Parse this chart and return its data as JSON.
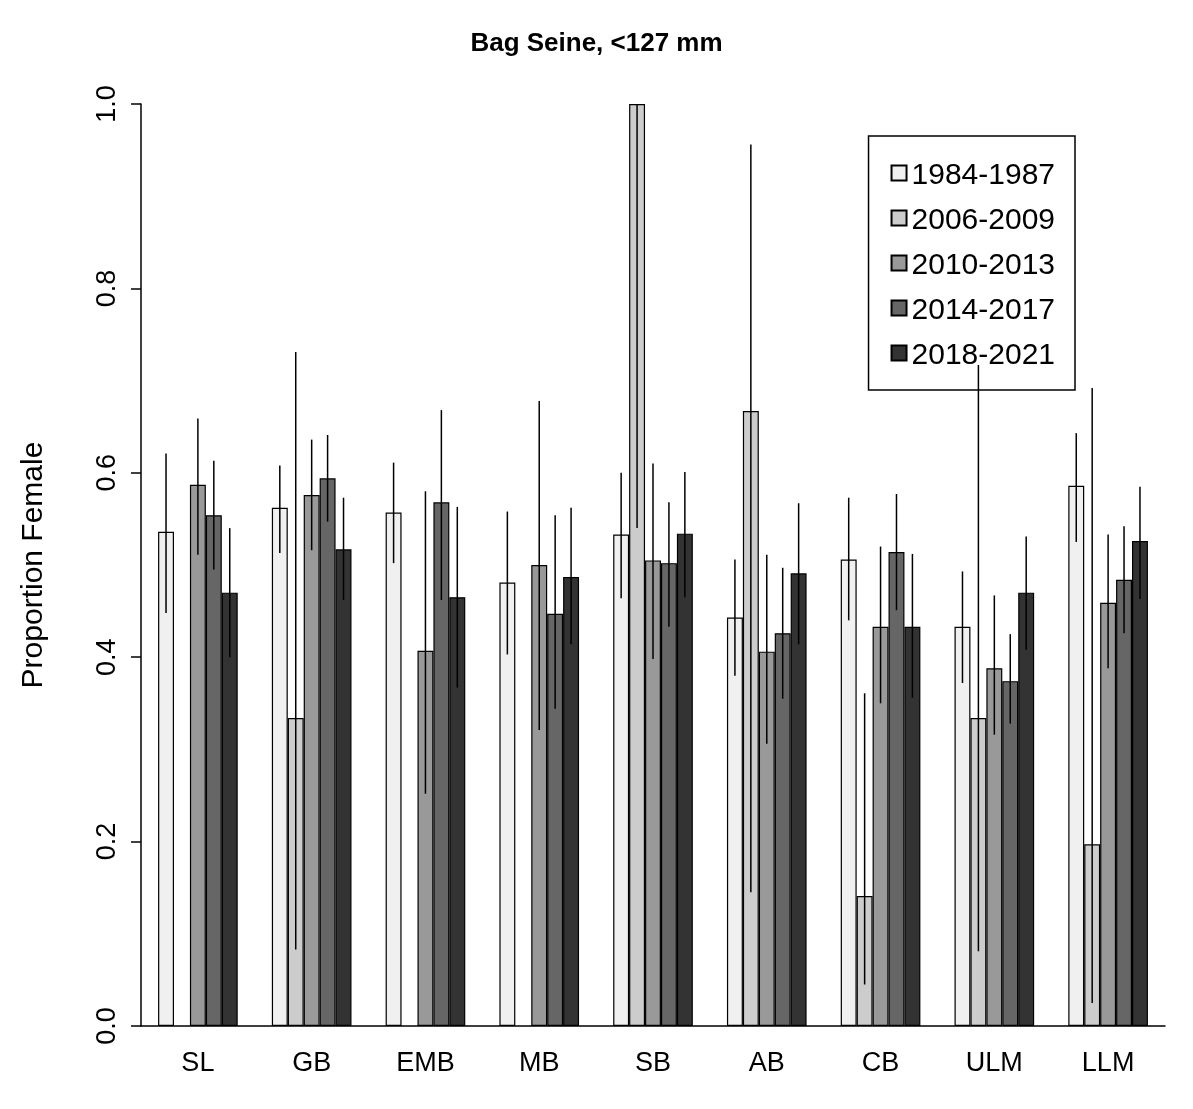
{
  "chart_data": {
    "type": "bar",
    "title": "Bag Seine, <127 mm",
    "ylabel": "Proportion Female",
    "categories": [
      "SL",
      "GB",
      "EMB",
      "MB",
      "SB",
      "AB",
      "CB",
      "ULM",
      "LLM"
    ],
    "series": [
      {
        "name": "1984-1987",
        "color": "#f0f0f0",
        "values": [
          0.536,
          0.562,
          0.557,
          0.481,
          0.533,
          0.443,
          0.506,
          0.433,
          0.586
        ],
        "errors": [
          [
            0.448,
            0.621
          ],
          [
            0.513,
            0.608
          ],
          [
            0.502,
            0.611
          ],
          [
            0.403,
            0.558
          ],
          [
            0.464,
            0.6
          ],
          [
            0.38,
            0.506
          ],
          [
            0.44,
            0.573
          ],
          [
            0.372,
            0.493
          ],
          [
            0.525,
            0.643
          ]
        ]
      },
      {
        "name": "2006-2009",
        "color": "#cccccc",
        "values": [
          null,
          0.334,
          null,
          null,
          1.0,
          0.667,
          0.141,
          0.334,
          0.197
        ],
        "errors": [
          null,
          [
            0.083,
            0.731
          ],
          null,
          null,
          [
            0.54,
            1.0
          ],
          [
            0.145,
            0.956
          ],
          [
            0.045,
            0.361
          ],
          [
            0.081,
            0.717
          ],
          [
            0.025,
            0.692
          ]
        ]
      },
      {
        "name": "2010-2013",
        "color": "#999999",
        "values": [
          0.587,
          0.576,
          0.407,
          0.5,
          0.505,
          0.406,
          0.433,
          0.388,
          0.459
        ],
        "errors": [
          [
            0.511,
            0.659
          ],
          [
            0.516,
            0.636
          ],
          [
            0.252,
            0.58
          ],
          [
            0.321,
            0.678
          ],
          [
            0.398,
            0.61
          ],
          [
            0.306,
            0.511
          ],
          [
            0.35,
            0.52
          ],
          [
            0.316,
            0.467
          ],
          [
            0.388,
            0.533
          ]
        ]
      },
      {
        "name": "2014-2017",
        "color": "#666666",
        "values": [
          0.554,
          0.594,
          0.568,
          0.447,
          0.502,
          0.426,
          0.514,
          0.374,
          0.484
        ],
        "errors": [
          [
            0.495,
            0.613
          ],
          [
            0.547,
            0.641
          ],
          [
            0.462,
            0.668
          ],
          [
            0.344,
            0.554
          ],
          [
            0.433,
            0.568
          ],
          [
            0.355,
            0.497
          ],
          [
            0.451,
            0.577
          ],
          [
            0.328,
            0.425
          ],
          [
            0.426,
            0.542
          ]
        ]
      },
      {
        "name": "2018-2021",
        "color": "#333333",
        "values": [
          0.47,
          0.517,
          0.465,
          0.487,
          0.534,
          0.491,
          0.433,
          0.47,
          0.526
        ],
        "errors": [
          [
            0.4,
            0.54
          ],
          [
            0.462,
            0.573
          ],
          [
            0.367,
            0.563
          ],
          [
            0.414,
            0.562
          ],
          [
            0.465,
            0.601
          ],
          [
            0.414,
            0.567
          ],
          [
            0.356,
            0.512
          ],
          [
            0.408,
            0.531
          ],
          [
            0.463,
            0.585
          ]
        ]
      }
    ],
    "ylim": [
      0,
      1
    ],
    "yticks": [
      {
        "value": 0,
        "label": "0.0"
      },
      0.2,
      0.4,
      0.6,
      0.8,
      {
        "value": 1,
        "label": "1.0"
      }
    ],
    "legend": "top right",
    "grid": false
  }
}
